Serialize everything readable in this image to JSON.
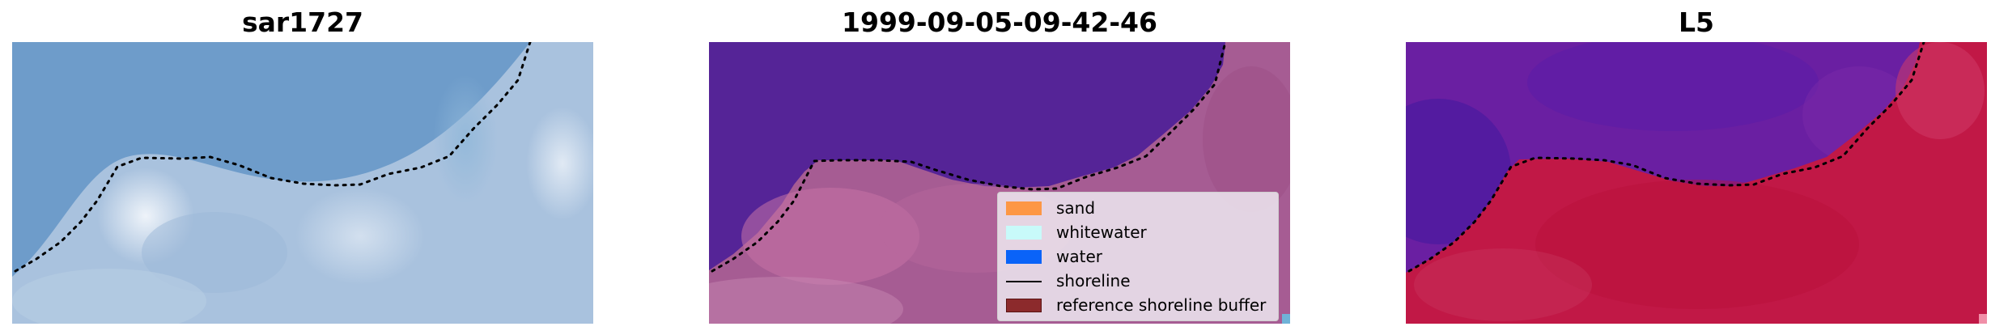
{
  "panels": [
    {
      "title": "sar1727"
    },
    {
      "title": "1999-09-05-09-42-46"
    },
    {
      "title": "L5"
    }
  ],
  "legend": {
    "placement": "lower-right of middle panel",
    "items": [
      {
        "label": "sand",
        "color": "#fd9745",
        "kind": "patch"
      },
      {
        "label": "whitewater",
        "color": "#c8fafa",
        "kind": "patch"
      },
      {
        "label": "water",
        "color": "#0a63f8",
        "kind": "patch"
      },
      {
        "label": "shoreline",
        "color": "#000000",
        "kind": "line"
      },
      {
        "label": "reference shoreline buffer",
        "color": "#8c2a2c",
        "kind": "patch"
      }
    ]
  },
  "colors": {
    "sea_true_color": "#6e9cca",
    "land_true_color": "#a9c2de",
    "water_classified": "#552497",
    "land_classified": "#a65c93",
    "water_index": "#6a1fa2",
    "land_index": "#c11846",
    "shoreline": "#000000"
  }
}
